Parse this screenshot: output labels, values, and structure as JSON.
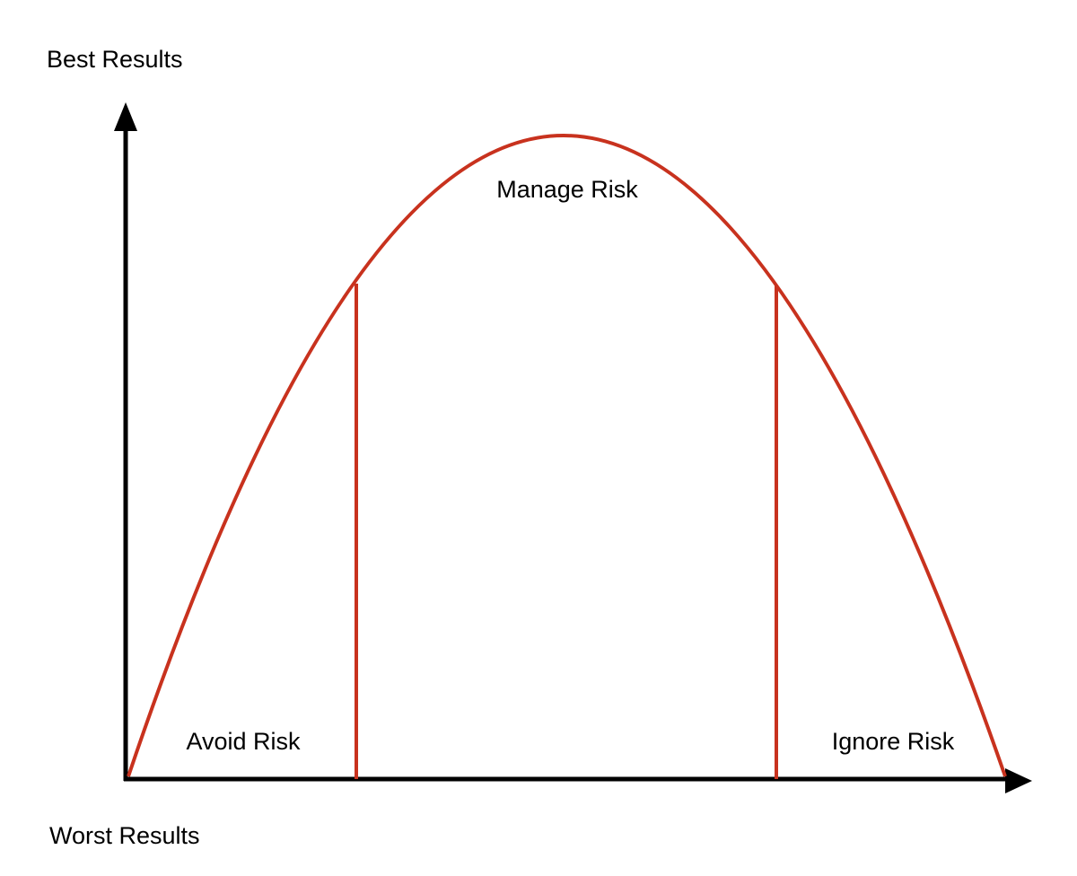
{
  "axis_labels": {
    "top": "Best Results",
    "bottom": "Worst Results"
  },
  "regions": [
    {
      "label": "Avoid Risk"
    },
    {
      "label": "Manage Risk"
    },
    {
      "label": "Ignore Risk"
    }
  ]
}
